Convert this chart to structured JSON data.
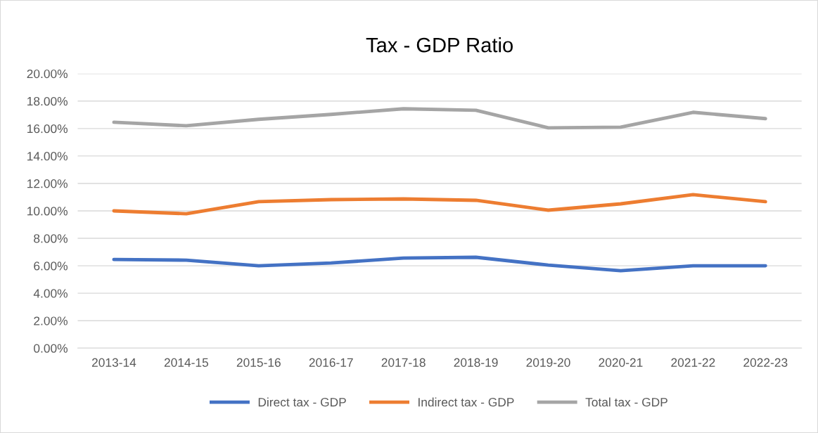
{
  "chart_data": {
    "type": "line",
    "title": "Tax - GDP Ratio",
    "categories": [
      "2013-14",
      "2014-15",
      "2015-16",
      "2016-17",
      "2017-18",
      "2018-19",
      "2019-20",
      "2020-21",
      "2021-22",
      "2022-23"
    ],
    "series": [
      {
        "name": "Direct tax - GDP",
        "color": "#4472c4",
        "values": [
          6.46,
          6.41,
          6.0,
          6.2,
          6.56,
          6.62,
          6.05,
          5.64,
          6.0,
          6.0
        ]
      },
      {
        "name": "Indirect tax - GDP",
        "color": "#ed7d31",
        "values": [
          10.0,
          9.79,
          10.67,
          10.82,
          10.87,
          10.77,
          10.05,
          10.51,
          11.18,
          10.67
        ]
      },
      {
        "name": "Total tax - GDP",
        "color": "#a5a5a5",
        "values": [
          16.46,
          16.2,
          16.67,
          17.03,
          17.44,
          17.33,
          16.05,
          16.1,
          17.18,
          16.72
        ]
      }
    ],
    "ylim": [
      0,
      20
    ],
    "yticks": [
      {
        "value": 0,
        "label": "0.00%"
      },
      {
        "value": 2,
        "label": "2.00%"
      },
      {
        "value": 4,
        "label": "4.00%"
      },
      {
        "value": 6,
        "label": "6.00%"
      },
      {
        "value": 8,
        "label": "8.00%"
      },
      {
        "value": 10,
        "label": "10.00%"
      },
      {
        "value": 12,
        "label": "12.00%"
      },
      {
        "value": 14,
        "label": "14.00%"
      },
      {
        "value": 16,
        "label": "16.00%"
      },
      {
        "value": 18,
        "label": "18.00%"
      },
      {
        "value": 20,
        "label": "20.00%"
      }
    ],
    "grid": "y",
    "legend": "bottom",
    "marker": "none",
    "line_style": "solid"
  }
}
